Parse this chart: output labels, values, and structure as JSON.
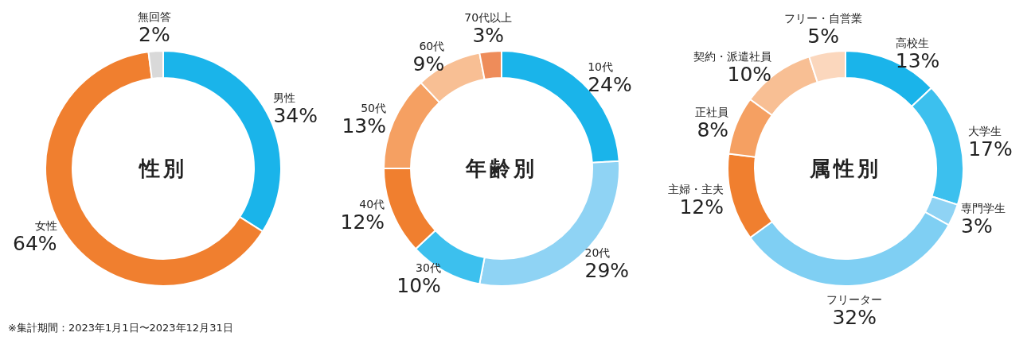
{
  "chart_data": [
    {
      "type": "donut",
      "title": "性別",
      "categories": [
        "男性",
        "女性",
        "無回答"
      ],
      "values": [
        34,
        64,
        2
      ],
      "colors": [
        "#1ab4ea",
        "#f07f2f",
        "#d9d9d9"
      ],
      "value_labels": [
        "34%",
        "64%",
        "2%"
      ],
      "annotations": [
        "※集計期間：2023年1月1日〜2023年12月31日"
      ]
    },
    {
      "type": "donut",
      "title": "年齢別",
      "categories": [
        "10代",
        "20代",
        "30代",
        "40代",
        "50代",
        "60代",
        "70代以上"
      ],
      "values": [
        24,
        29,
        10,
        12,
        13,
        9,
        3
      ],
      "colors": [
        "#1ab4ea",
        "#8fd3f4",
        "#3cc0ee",
        "#f07f2f",
        "#f5a062",
        "#f8bf94",
        "#ee8c5a"
      ],
      "value_labels": [
        "24%",
        "29%",
        "10%",
        "12%",
        "13%",
        "9%",
        "3%"
      ]
    },
    {
      "type": "donut",
      "title": "属性別",
      "categories": [
        "高校生",
        "大学生",
        "専門学生",
        "フリーター",
        "主婦・主夫",
        "正社員",
        "契約・派遣社員",
        "フリー・自営業"
      ],
      "values": [
        13,
        17,
        3,
        32,
        12,
        8,
        10,
        5
      ],
      "colors": [
        "#1ab4ea",
        "#3cc0ee",
        "#8fd3f4",
        "#7fcff3",
        "#f07f2f",
        "#f5a062",
        "#f8bf94",
        "#fbd7bd"
      ],
      "value_labels": [
        "13%",
        "17%",
        "3%",
        "32%",
        "12%",
        "8%",
        "10%",
        "5%"
      ]
    }
  ]
}
